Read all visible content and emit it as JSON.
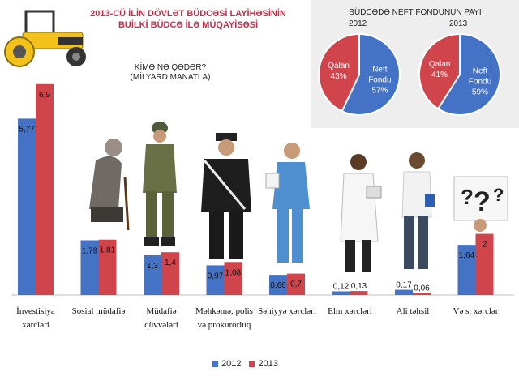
{
  "title_line1": "2013-CÜ İLİN DÖVLƏT BÜDCƏSİ LAYİHƏSİNİN",
  "title_line2": "BUİLKİ BÜDCƏ İLƏ MÜQAYİSƏSİ",
  "subtitle_line1": "KİMƏ NƏ QƏDƏR?",
  "subtitle_line2": "(MİLYARD MANATLA)",
  "pie_title": "BÜDCƏDƏ NEFT FONDUNUN PAYI",
  "colors": {
    "y2012": "#4472c4",
    "y2013": "#d0454c",
    "panel": "#eeeeee"
  },
  "chart_data": [
    {
      "type": "bar",
      "series": [
        {
          "name": "2012",
          "values": [
            5.77,
            1.79,
            1.3,
            0.97,
            0.66,
            0.12,
            0.17,
            1.64
          ]
        },
        {
          "name": "2013",
          "values": [
            6.9,
            1.81,
            1.4,
            1.08,
            0.7,
            0.13,
            0.06,
            2
          ]
        }
      ],
      "value_labels_2012": [
        "5,77",
        "1,79",
        "1,3",
        "0,97",
        "0,66",
        "0,12",
        "0,17",
        "1,64"
      ],
      "value_labels_2013": [
        "6,9",
        "1,81",
        "1,4",
        "1,08",
        "0,7",
        "0,13",
        "0,06",
        "2"
      ],
      "categories": [
        [
          "İnvestisiya",
          "xərcləri"
        ],
        [
          "Sosial",
          "müdafiə"
        ],
        [
          "Müdafiə",
          "qüvvələri"
        ],
        [
          "Məhkəmə,",
          "polis və",
          "prokurorluq"
        ],
        [
          "Səhiyyə",
          "xərcləri"
        ],
        [
          "Elm xərcləri"
        ],
        [
          "Ali təhsil"
        ],
        [
          "Və s. xərclər"
        ]
      ],
      "legend": [
        "2012",
        "2013"
      ],
      "legend_position": "bottom",
      "ylim": [
        0,
        7.5
      ]
    },
    {
      "type": "pie",
      "year": "2012",
      "slices": [
        {
          "label": [
            "Neft",
            "Fondu"
          ],
          "value": 57,
          "display": "57%"
        },
        {
          "label": [
            "Qalan"
          ],
          "value": 43,
          "display": "43%"
        }
      ]
    },
    {
      "type": "pie",
      "year": "2013",
      "slices": [
        {
          "label": [
            "Neft",
            "Fondu"
          ],
          "value": 59,
          "display": "59%"
        },
        {
          "label": [
            "Qalan"
          ],
          "value": 41,
          "display": "41%"
        }
      ]
    }
  ]
}
